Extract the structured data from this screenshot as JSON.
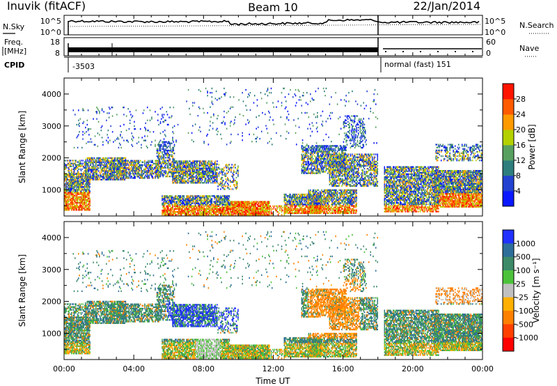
{
  "header": {
    "title": "Inuvik (fitACF)",
    "beam": "Beam 10",
    "date": "22/Jan/2014"
  },
  "panels": {
    "nsky_label": "N.Sky",
    "nsearch_label": "N.Search",
    "nsky_ticks": [
      "10^5",
      "10^0"
    ],
    "nsearch_ticks": [
      "10^5",
      "10^0"
    ],
    "freq_label_line1": "Freq.",
    "freq_label_line2": "[MHz]",
    "freq_ticks": [
      "18",
      "8"
    ],
    "nave_label": "Nave",
    "nave_ticks": [
      "60",
      "0"
    ],
    "cpid_label": "CPID",
    "cpid_1": "-3503",
    "cpid_2": "normal (fast) 151"
  },
  "chart_data": [
    {
      "type": "heatmap",
      "name": "power",
      "ylabel": "Slant Range [km]",
      "xlabel": "Time UT",
      "x_ticks": [
        "00:00",
        "04:00",
        "08:00",
        "12:00",
        "16:00",
        "20:00",
        "00:00"
      ],
      "x_range_hours": [
        0,
        24
      ],
      "y_ticks": [
        1000,
        2000,
        3000,
        4000
      ],
      "ylim": [
        180,
        4500
      ],
      "colorbar": {
        "label": "Power [dB]",
        "tick_labels": [
          "4",
          "8",
          "12",
          "16",
          "20",
          "24",
          "28"
        ],
        "colors": [
          "#0a18ff",
          "#2242d0",
          "#2e7e7e",
          "#58a060",
          "#b4d000",
          "#ff9a00",
          "#ff5a00",
          "#ff1400"
        ]
      },
      "gap_at_hour": 18.2
    },
    {
      "type": "heatmap",
      "name": "velocity",
      "ylabel": "Slant Range [km]",
      "xlabel": "Time UT",
      "x_ticks": [
        "00:00",
        "04:00",
        "08:00",
        "12:00",
        "16:00",
        "20:00",
        "00:00"
      ],
      "x_range_hours": [
        0,
        24
      ],
      "y_ticks": [
        1000,
        2000,
        3000,
        4000
      ],
      "ylim": [
        180,
        4500
      ],
      "colorbar": {
        "label": "Velocity [m s⁻¹]",
        "tick_labels": [
          "1000",
          "500",
          "100",
          "25",
          "-25",
          "-100",
          "-500",
          "-1000"
        ],
        "colors": [
          "#2030ff",
          "#2e6e9a",
          "#3c8a68",
          "#4cc23a",
          "#c0c0c0",
          "#ffb000",
          "#ff8000",
          "#ff4000",
          "#ff0000"
        ]
      }
    }
  ],
  "bands": [
    {
      "t0": 0.0,
      "t1": 1.5,
      "r0": 350,
      "r1": 1500,
      "p": 0.8
    },
    {
      "t0": 0.0,
      "t1": 1.3,
      "r0": 1400,
      "r1": 1900,
      "p": 0.5
    },
    {
      "t0": 1.2,
      "t1": 3.5,
      "r0": 1300,
      "r1": 2000,
      "p": 0.7
    },
    {
      "t0": 2.6,
      "t1": 5.4,
      "r0": 1350,
      "r1": 1900,
      "p": 0.65
    },
    {
      "t0": 5.3,
      "t1": 6.3,
      "r0": 1400,
      "r1": 2500,
      "p": 0.5
    },
    {
      "t0": 5.6,
      "t1": 9.5,
      "r0": 200,
      "r1": 800,
      "p": 0.8
    },
    {
      "t0": 6.2,
      "t1": 8.8,
      "r0": 1200,
      "r1": 1900,
      "p": 0.75
    },
    {
      "t0": 8.8,
      "t1": 10.0,
      "r0": 1000,
      "r1": 1800,
      "p": 0.35
    },
    {
      "t0": 9.5,
      "t1": 11.8,
      "r0": 200,
      "r1": 620,
      "p": 0.9
    },
    {
      "t0": 11.5,
      "t1": 12.7,
      "r0": 200,
      "r1": 500,
      "p": 0.35
    },
    {
      "t0": 12.6,
      "t1": 14.8,
      "r0": 250,
      "r1": 850,
      "p": 0.75
    },
    {
      "t0": 13.6,
      "t1": 16.2,
      "r0": 1500,
      "r1": 2400,
      "p": 0.65
    },
    {
      "t0": 14.0,
      "t1": 16.8,
      "r0": 250,
      "r1": 1000,
      "p": 0.7
    },
    {
      "t0": 15.2,
      "t1": 18.0,
      "r0": 1100,
      "r1": 2100,
      "p": 0.6
    },
    {
      "t0": 16.0,
      "t1": 17.3,
      "r0": 2300,
      "r1": 3300,
      "p": 0.3
    },
    {
      "t0": 18.3,
      "t1": 21.5,
      "r0": 300,
      "r1": 1700,
      "p": 0.7
    },
    {
      "t0": 21.2,
      "t1": 24.0,
      "r0": 450,
      "r1": 1600,
      "p": 0.85
    },
    {
      "t0": 21.3,
      "t1": 24.0,
      "r0": 1900,
      "r1": 2400,
      "p": 0.4
    },
    {
      "t0": 0.5,
      "t1": 6.5,
      "r0": 2300,
      "r1": 3600,
      "p": 0.06
    },
    {
      "t0": 7.0,
      "t1": 18.0,
      "r0": 2400,
      "r1": 4200,
      "p": 0.03
    }
  ]
}
